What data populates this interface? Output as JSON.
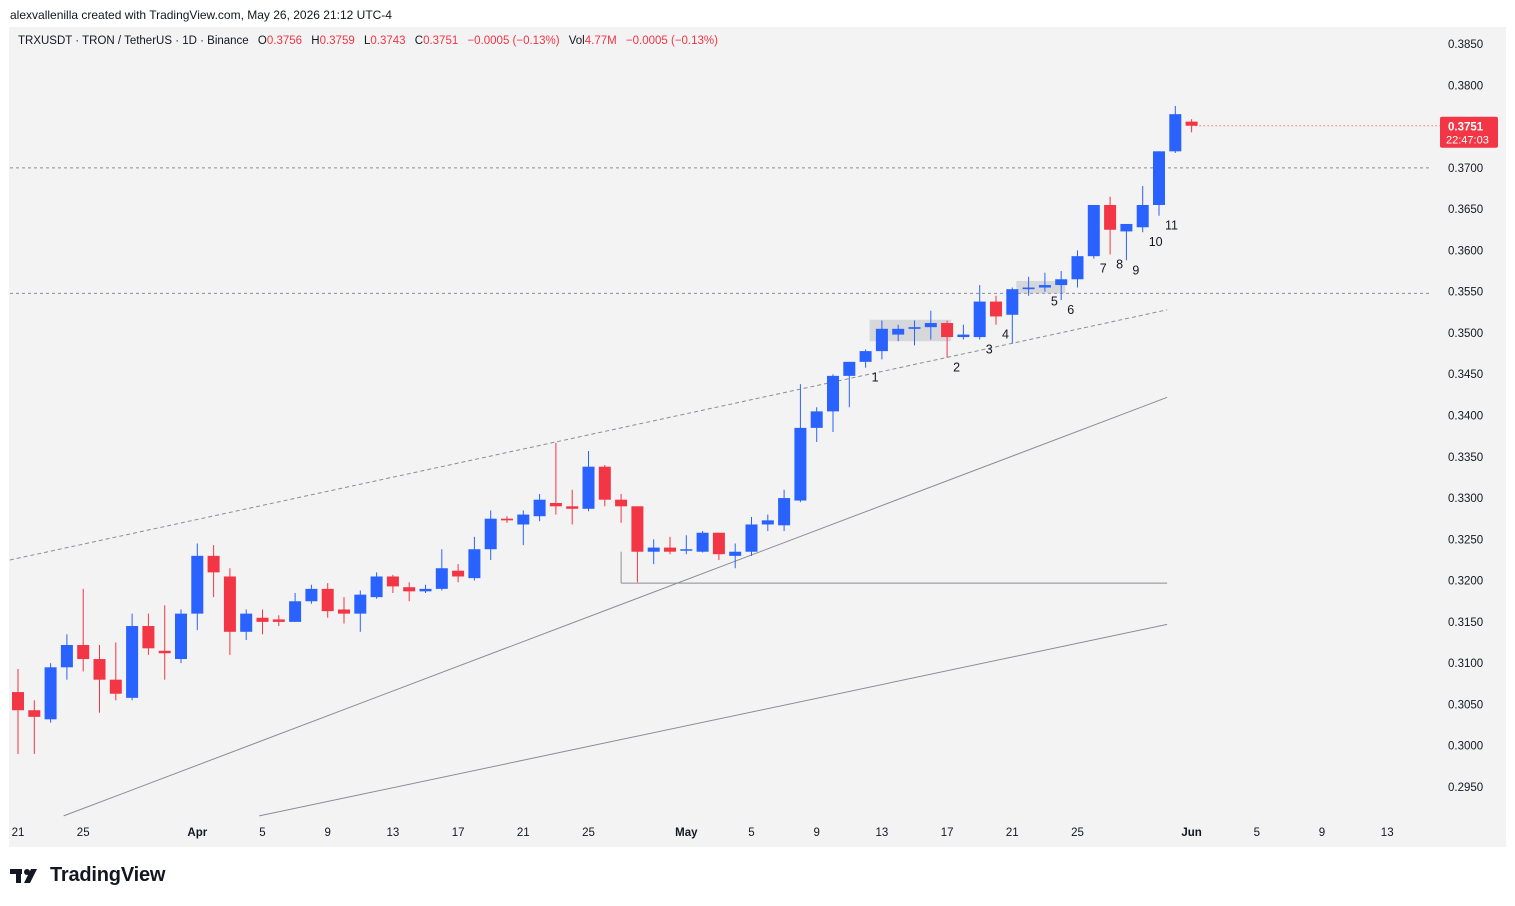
{
  "caption": "alexvallenilla created with TradingView.com, May 26, 2026 21:12 UTC-4",
  "legend": {
    "symbol": "TRXUSDT · TRON / TetherUS · 1D · Binance",
    "o_label": "O",
    "o_value": "0.3756",
    "h_label": "H",
    "h_value": "0.3759",
    "l_label": "L",
    "l_value": "0.3743",
    "c_label": "C",
    "c_value": "0.3751",
    "change": "−0.0005 (−0.13%)",
    "vol_label": "Vol",
    "vol_value": "4.77M",
    "vol_change": "−0.0005 (−0.13%)"
  },
  "price_badge": {
    "price": "0.3751",
    "countdown": "22:47:03",
    "color": "#f23645"
  },
  "brand": {
    "name": "TradingView"
  },
  "colors": {
    "up": "#2962ff",
    "down": "#f23645",
    "line": "#9598a1",
    "bg": "#f3f3f3"
  },
  "chart_data": {
    "type": "candlestick",
    "title": "TRXUSDT · TRON / TetherUS · 1D · Binance",
    "y_ticks": [
      "0.3850",
      "0.3800",
      "0.3750",
      "0.3700",
      "0.3650",
      "0.3600",
      "0.3550",
      "0.3500",
      "0.3450",
      "0.3400",
      "0.3350",
      "0.3300",
      "0.3250",
      "0.3200",
      "0.3150",
      "0.3100",
      "0.3050",
      "0.3000",
      "0.2950"
    ],
    "x_ticks": [
      {
        "label": "21",
        "day": 0
      },
      {
        "label": "25",
        "day": 4
      },
      {
        "label": "Apr",
        "day": 11
      },
      {
        "label": "5",
        "day": 15
      },
      {
        "label": "9",
        "day": 19
      },
      {
        "label": "13",
        "day": 23
      },
      {
        "label": "17",
        "day": 27
      },
      {
        "label": "21",
        "day": 31
      },
      {
        "label": "25",
        "day": 35
      },
      {
        "label": "May",
        "day": 41
      },
      {
        "label": "5",
        "day": 45
      },
      {
        "label": "9",
        "day": 49
      },
      {
        "label": "13",
        "day": 53
      },
      {
        "label": "17",
        "day": 57
      },
      {
        "label": "21",
        "day": 61
      },
      {
        "label": "25",
        "day": 65
      },
      {
        "label": "Jun",
        "day": 72
      },
      {
        "label": "5",
        "day": 76
      },
      {
        "label": "9",
        "day": 80
      },
      {
        "label": "13",
        "day": 84
      }
    ],
    "ylim": [
      0.2925,
      0.387
    ],
    "candles": [
      [
        0.3065,
        0.3093,
        0.299,
        0.3043
      ],
      [
        0.3043,
        0.3055,
        0.299,
        0.3035
      ],
      [
        0.3032,
        0.31,
        0.3028,
        0.3095
      ],
      [
        0.3095,
        0.3135,
        0.308,
        0.3122
      ],
      [
        0.3122,
        0.319,
        0.309,
        0.3105
      ],
      [
        0.3105,
        0.3122,
        0.304,
        0.308
      ],
      [
        0.308,
        0.3125,
        0.3055,
        0.3063
      ],
      [
        0.3058,
        0.316,
        0.3055,
        0.3145
      ],
      [
        0.3145,
        0.316,
        0.311,
        0.3118
      ],
      [
        0.3115,
        0.317,
        0.308,
        0.3112
      ],
      [
        0.3105,
        0.3165,
        0.31,
        0.316
      ],
      [
        0.316,
        0.3245,
        0.314,
        0.323
      ],
      [
        0.323,
        0.3243,
        0.318,
        0.321
      ],
      [
        0.3205,
        0.3215,
        0.311,
        0.3138
      ],
      [
        0.3138,
        0.3165,
        0.3128,
        0.316
      ],
      [
        0.3155,
        0.3165,
        0.3135,
        0.315
      ],
      [
        0.3153,
        0.3158,
        0.3145,
        0.315
      ],
      [
        0.315,
        0.3185,
        0.315,
        0.3175
      ],
      [
        0.3175,
        0.3195,
        0.3172,
        0.319
      ],
      [
        0.319,
        0.3197,
        0.3155,
        0.3163
      ],
      [
        0.3165,
        0.318,
        0.3148,
        0.316
      ],
      [
        0.316,
        0.3188,
        0.3138,
        0.3183
      ],
      [
        0.318,
        0.321,
        0.3178,
        0.3205
      ],
      [
        0.3205,
        0.3207,
        0.3185,
        0.3193
      ],
      [
        0.3192,
        0.3198,
        0.3175,
        0.3187
      ],
      [
        0.3187,
        0.3195,
        0.3185,
        0.319
      ],
      [
        0.319,
        0.3238,
        0.3188,
        0.3215
      ],
      [
        0.3212,
        0.322,
        0.3198,
        0.3205
      ],
      [
        0.3203,
        0.3253,
        0.32,
        0.3238
      ],
      [
        0.3238,
        0.3285,
        0.3225,
        0.3275
      ],
      [
        0.3275,
        0.3278,
        0.327,
        0.3273
      ],
      [
        0.3268,
        0.3285,
        0.3243,
        0.328
      ],
      [
        0.3278,
        0.3305,
        0.3272,
        0.3298
      ],
      [
        0.3294,
        0.3367,
        0.328,
        0.329
      ],
      [
        0.329,
        0.331,
        0.3268,
        0.3287
      ],
      [
        0.3287,
        0.3357,
        0.3284,
        0.3338
      ],
      [
        0.3338,
        0.334,
        0.329,
        0.3298
      ],
      [
        0.3298,
        0.3305,
        0.327,
        0.329
      ],
      [
        0.329,
        0.329,
        0.3198,
        0.3235
      ],
      [
        0.3235,
        0.325,
        0.322,
        0.324
      ],
      [
        0.324,
        0.3253,
        0.3232,
        0.3235
      ],
      [
        0.3238,
        0.3255,
        0.3232,
        0.3238
      ],
      [
        0.3235,
        0.326,
        0.3234,
        0.3258
      ],
      [
        0.3258,
        0.3258,
        0.3225,
        0.3232
      ],
      [
        0.323,
        0.3245,
        0.3215,
        0.3235
      ],
      [
        0.3235,
        0.3277,
        0.323,
        0.3268
      ],
      [
        0.3268,
        0.328,
        0.326,
        0.3273
      ],
      [
        0.3267,
        0.331,
        0.326,
        0.33
      ],
      [
        0.3297,
        0.3438,
        0.3295,
        0.3385
      ],
      [
        0.3385,
        0.341,
        0.3368,
        0.3405
      ],
      [
        0.3405,
        0.345,
        0.338,
        0.3448
      ],
      [
        0.3448,
        0.3465,
        0.341,
        0.3465
      ],
      [
        0.3465,
        0.348,
        0.3458,
        0.3478
      ],
      [
        0.3478,
        0.3515,
        0.3468,
        0.3505
      ],
      [
        0.3498,
        0.351,
        0.349,
        0.3505
      ],
      [
        0.3505,
        0.3515,
        0.3485,
        0.3507
      ],
      [
        0.3507,
        0.3527,
        0.3492,
        0.3512
      ],
      [
        0.3512,
        0.3515,
        0.347,
        0.3495
      ],
      [
        0.3495,
        0.351,
        0.3492,
        0.3498
      ],
      [
        0.3495,
        0.3558,
        0.3492,
        0.3538
      ],
      [
        0.3538,
        0.3545,
        0.351,
        0.352
      ],
      [
        0.3522,
        0.3555,
        0.3487,
        0.3553
      ],
      [
        0.3553,
        0.3568,
        0.3545,
        0.3555
      ],
      [
        0.3555,
        0.3573,
        0.355,
        0.3558
      ],
      [
        0.3558,
        0.3575,
        0.354,
        0.3565
      ],
      [
        0.3565,
        0.36,
        0.3555,
        0.3593
      ],
      [
        0.3593,
        0.3655,
        0.359,
        0.3655
      ],
      [
        0.3655,
        0.3665,
        0.3595,
        0.3625
      ],
      [
        0.3623,
        0.3632,
        0.3588,
        0.3632
      ],
      [
        0.3628,
        0.3678,
        0.3622,
        0.3655
      ],
      [
        0.3655,
        0.372,
        0.3642,
        0.372
      ],
      [
        0.372,
        0.3775,
        0.3718,
        0.3765
      ],
      [
        0.3756,
        0.3759,
        0.3743,
        0.3751
      ]
    ],
    "wave_labels": [
      {
        "label": "1",
        "candle": 52
      },
      {
        "label": "2",
        "candle": 57
      },
      {
        "label": "3",
        "candle": 59
      },
      {
        "label": "4",
        "candle": 60
      },
      {
        "label": "5",
        "candle": 63
      },
      {
        "label": "6",
        "candle": 64
      },
      {
        "label": "7",
        "candle": 66
      },
      {
        "label": "8",
        "candle": 67
      },
      {
        "label": "9",
        "candle": 68
      },
      {
        "label": "10",
        "candle": 69
      },
      {
        "label": "11",
        "candle": 70
      }
    ],
    "horizontal_levels": [
      0.37,
      0.3548
    ],
    "support_level": 0.3197
  }
}
